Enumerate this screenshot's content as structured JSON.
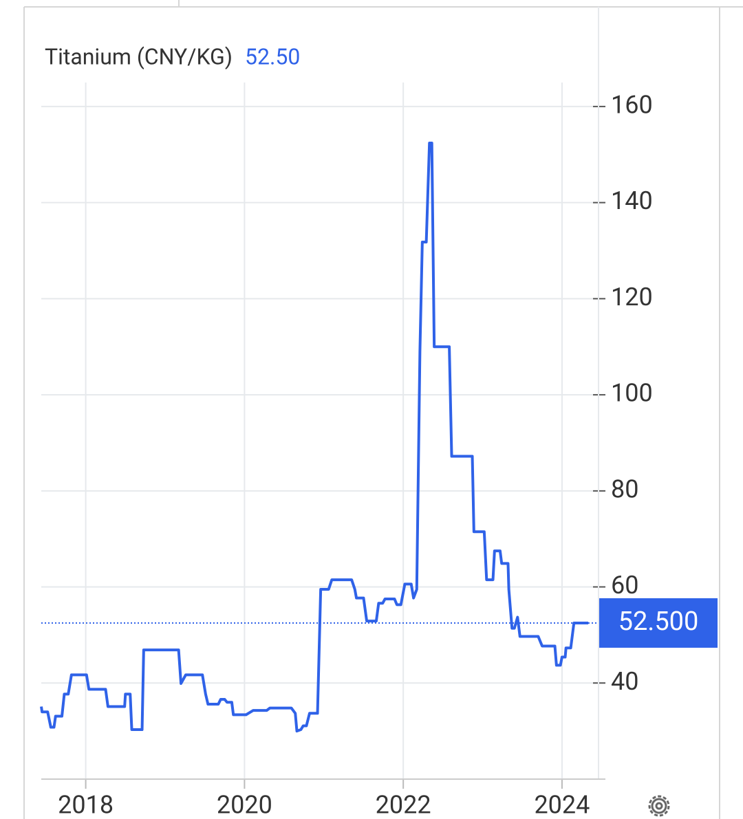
{
  "chart_data": {
    "type": "line",
    "title": "Titanium (CNY/KG)",
    "current": {
      "value": 52.5,
      "label": "52.50"
    },
    "last_value": {
      "value": 52.5,
      "label": "52.500"
    },
    "color": "#2f62e8",
    "x": [
      2017.44,
      2017.45,
      2017.52,
      2017.56,
      2017.6,
      2017.62,
      2017.7,
      2017.73,
      2017.78,
      2017.82,
      2018.01,
      2018.04,
      2018.25,
      2018.28,
      2018.49,
      2018.5,
      2018.56,
      2018.58,
      2018.71,
      2018.73,
      2019.17,
      2019.2,
      2019.26,
      2019.47,
      2019.51,
      2019.54,
      2019.67,
      2019.7,
      2019.75,
      2019.78,
      2019.84,
      2019.86,
      2020.02,
      2020.06,
      2020.11,
      2020.28,
      2020.32,
      2020.59,
      2020.64,
      2020.66,
      2020.71,
      2020.74,
      2020.78,
      2020.82,
      2020.92,
      2020.96,
      2021.06,
      2021.1,
      2021.35,
      2021.39,
      2021.41,
      2021.5,
      2021.54,
      2021.66,
      2021.69,
      2021.74,
      2021.77,
      2021.89,
      2021.92,
      2021.97,
      2022.02,
      2022.1,
      2022.13,
      2022.17,
      2022.21,
      2022.24,
      2022.29,
      2022.33,
      2022.36,
      2022.39,
      2022.58,
      2022.61,
      2022.87,
      2022.89,
      2023.02,
      2023.05,
      2023.13,
      2023.15,
      2023.22,
      2023.24,
      2023.32,
      2023.33,
      2023.37,
      2023.4,
      2023.44,
      2023.47,
      2023.7,
      2023.75,
      2023.91,
      2023.93,
      2023.98,
      2024.0,
      2024.04,
      2024.05,
      2024.11,
      2024.15,
      2024.33
    ],
    "values": [
      35.1,
      34.0,
      34.0,
      30.8,
      30.8,
      33.1,
      33.1,
      37.7,
      37.7,
      41.7,
      41.7,
      38.7,
      38.7,
      35.1,
      35.1,
      37.7,
      37.7,
      30.3,
      30.3,
      46.9,
      46.9,
      39.9,
      41.7,
      41.7,
      37.7,
      35.6,
      35.6,
      36.6,
      36.6,
      36.0,
      36.0,
      33.4,
      33.4,
      33.8,
      34.3,
      34.3,
      34.8,
      34.8,
      33.7,
      30.0,
      30.3,
      31.1,
      31.1,
      33.7,
      33.7,
      59.5,
      59.5,
      61.5,
      61.5,
      59.5,
      57.7,
      57.7,
      52.9,
      52.9,
      56.6,
      56.6,
      57.5,
      57.5,
      56.3,
      56.3,
      60.6,
      60.6,
      57.7,
      59.5,
      109.0,
      131.8,
      131.8,
      152.4,
      152.4,
      110.0,
      110.0,
      87.2,
      87.2,
      71.5,
      71.5,
      61.5,
      61.5,
      67.5,
      67.5,
      64.9,
      64.9,
      59.5,
      51.4,
      51.4,
      53.7,
      49.7,
      49.7,
      47.7,
      47.7,
      43.7,
      43.7,
      45.4,
      45.4,
      47.3,
      47.3,
      52.5,
      52.5
    ],
    "xlim": [
      2017.44,
      2024.46
    ],
    "xticks": [
      2018,
      2020,
      2022,
      2024
    ],
    "ylim": [
      20,
      165
    ],
    "yticks": [
      40,
      60,
      80,
      100,
      120,
      140,
      160
    ],
    "grid": true
  }
}
